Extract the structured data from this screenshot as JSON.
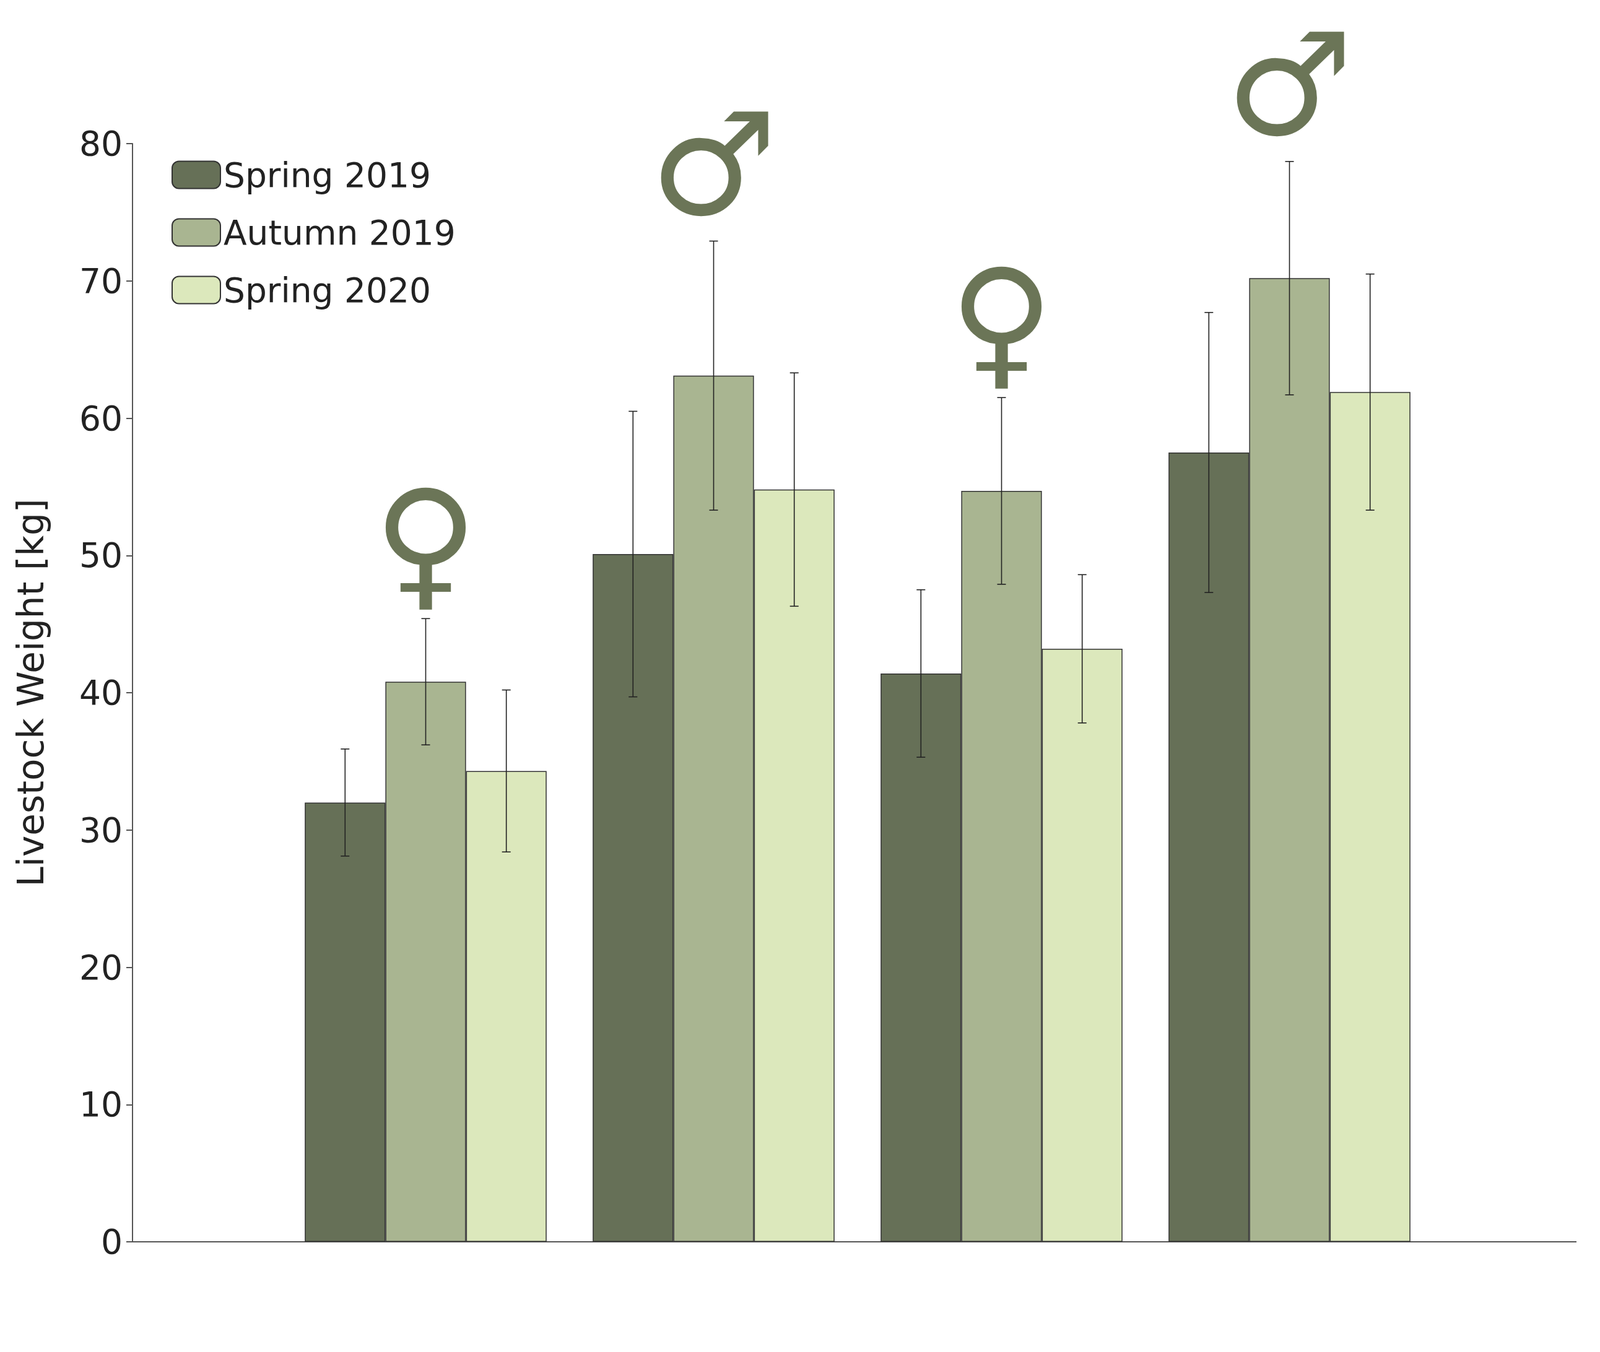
{
  "chart_data": {
    "type": "bar",
    "y_label": "Livestock Weight [kg]",
    "categories": [
      null,
      null,
      null,
      null
    ],
    "annotations": [
      "♀",
      "♂",
      "♀",
      "♂"
    ],
    "series": [
      {
        "name": "Spring 2019",
        "color": "#667057",
        "values": [
          32.0,
          50.1,
          41.4,
          57.5
        ],
        "errors": [
          3.9,
          10.4,
          6.1,
          10.2
        ]
      },
      {
        "name": "Autumn 2019",
        "color": "#a9b591",
        "values": [
          40.8,
          63.1,
          54.7,
          70.2
        ],
        "errors": [
          4.6,
          9.8,
          6.8,
          8.5
        ]
      },
      {
        "name": "Spring 2020",
        "color": "#dce8bc",
        "values": [
          34.3,
          54.8,
          43.2,
          61.9
        ],
        "errors": [
          5.9,
          8.5,
          5.4,
          8.6
        ]
      }
    ],
    "ylim": [
      0,
      80
    ],
    "yticks": [
      0,
      10,
      20,
      30,
      40,
      50,
      60,
      70,
      80
    ],
    "grid": false,
    "legend": "upper left"
  }
}
